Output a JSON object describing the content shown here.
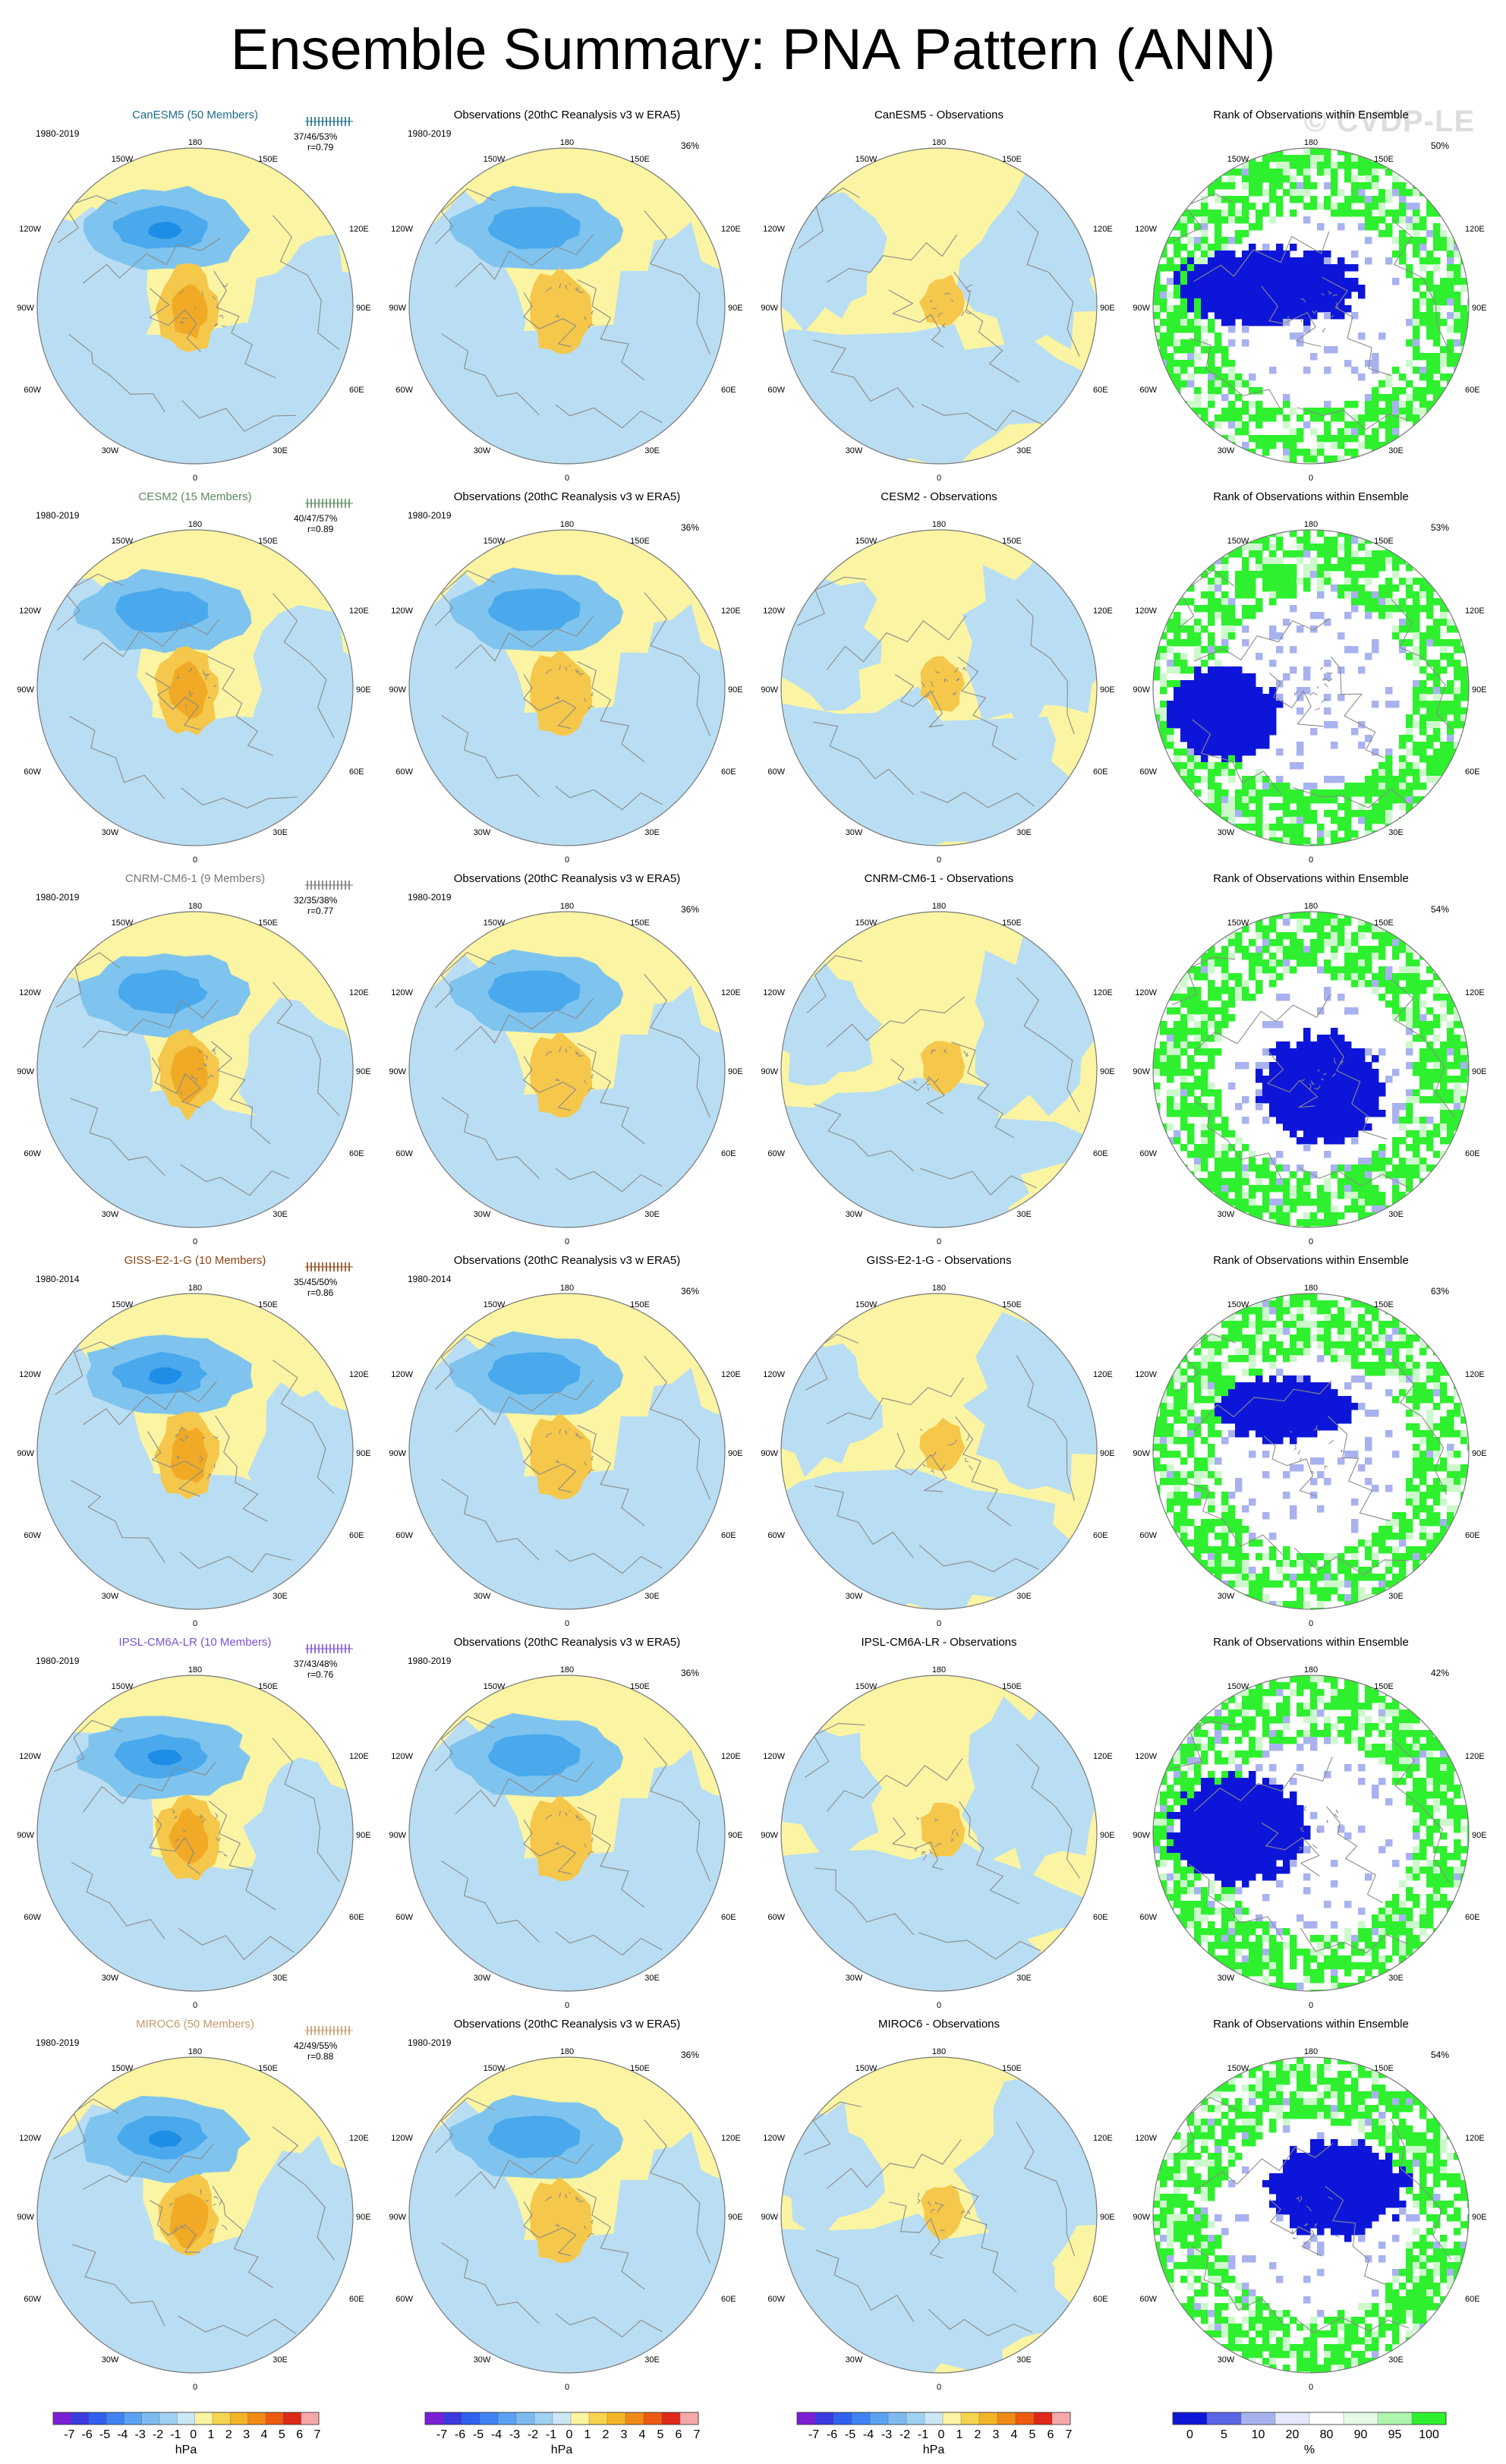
{
  "title": "Ensemble Summary: PNA Pattern (ANN)",
  "watermark": "© CVDP-LE",
  "colors": {
    "ocean_neg": "#b9def3",
    "neg_mid": "#7fc4ee",
    "neg_strong": "#49a9ec",
    "neg_core": "#1d8de6",
    "pos_weak": "#fbf4a2",
    "pos_mid": "#f5c74a",
    "pos_strong": "#f0aa25",
    "rank_high": "#2ef02e",
    "rank_low": "#0d16d8",
    "rank_lowmid": "#a8b2ef",
    "rank_highmid": "#cdf8cc",
    "coast": "#8a8a8a",
    "circle": "#777777"
  },
  "lon_labels": {
    "top": "180",
    "tl": "150W",
    "tr": "150E",
    "l1": "120W",
    "r1": "120E",
    "l2": "90W",
    "r2": "90E",
    "l3": "60W",
    "r3": "60E",
    "bl": "30W",
    "br": "30E",
    "bottom": "0"
  },
  "rows": [
    {
      "model": "CanESM5 (50 Members)",
      "model_color": "#1b6e8a",
      "years": "1980-2019",
      "stats": "37/46/53%",
      "r": "r=0.79",
      "obs_pct": "36%",
      "diff_title": "CanESM5 - Observations",
      "rank_pct": "50%",
      "lowshift": 0
    },
    {
      "model": "CESM2 (15 Members)",
      "model_color": "#5a8a60",
      "years": "1980-2019",
      "stats": "40/47/57%",
      "r": "r=0.89",
      "obs_pct": "36%",
      "diff_title": "CESM2 - Observations",
      "rank_pct": "53%",
      "lowshift": 1
    },
    {
      "model": "CNRM-CM6-1 (9 Members)",
      "model_color": "#777777",
      "years": "1980-2019",
      "stats": "32/35/38%",
      "r": "r=0.77",
      "obs_pct": "36%",
      "diff_title": "CNRM-CM6-1 - Observations",
      "rank_pct": "54%",
      "lowshift": 2
    },
    {
      "model": "GISS-E2-1-G (10 Members)",
      "model_color": "#8b4513",
      "years": "1980-2014",
      "stats": "35/45/50%",
      "r": "r=0.86",
      "obs_pct": "36%",
      "diff_title": "GISS-E2-1-G - Observations",
      "rank_pct": "63%",
      "lowshift": 3
    },
    {
      "model": "IPSL-CM6A-LR (10 Members)",
      "model_color": "#7b52d6",
      "years": "1980-2019",
      "stats": "37/43/48%",
      "r": "r=0.76",
      "obs_pct": "36%",
      "diff_title": "IPSL-CM6A-LR - Observations",
      "rank_pct": "42%",
      "lowshift": 4
    },
    {
      "model": "MIROC6 (50 Members)",
      "model_color": "#c49a6c",
      "years": "1980-2019",
      "stats": "42/49/55%",
      "r": "r=0.88",
      "obs_pct": "36%",
      "diff_title": "MIROC6 - Observations",
      "rank_pct": "54%",
      "lowshift": 5
    }
  ],
  "obs_title": "Observations (20thC Reanalysis v3 w ERA5)",
  "rank_title": "Rank of Observations within Ensemble",
  "colorbars": [
    {
      "labels": [
        "-7",
        "-6",
        "-5",
        "-4",
        "-3",
        "-2",
        "-1",
        "0",
        "1",
        "2",
        "3",
        "4",
        "5",
        "6",
        "7"
      ],
      "unit": "hPa",
      "colors": [
        "#7a1fd6",
        "#3a3ae0",
        "#2f60f0",
        "#3f82f3",
        "#5aa2f3",
        "#7dbbef",
        "#9fd1f2",
        "#cce8f7",
        "#fbf4a2",
        "#f7d44d",
        "#f4b428",
        "#f28a16",
        "#ee5a10",
        "#e02818",
        "#f4a8a8"
      ]
    },
    {
      "labels": [
        "-7",
        "-6",
        "-5",
        "-4",
        "-3",
        "-2",
        "-1",
        "0",
        "1",
        "2",
        "3",
        "4",
        "5",
        "6",
        "7"
      ],
      "unit": "hPa",
      "colors": [
        "#7a1fd6",
        "#3a3ae0",
        "#2f60f0",
        "#3f82f3",
        "#5aa2f3",
        "#7dbbef",
        "#9fd1f2",
        "#cce8f7",
        "#fbf4a2",
        "#f7d44d",
        "#f4b428",
        "#f28a16",
        "#ee5a10",
        "#e02818",
        "#f4a8a8"
      ]
    },
    {
      "labels": [
        "-7",
        "-6",
        "-5",
        "-4",
        "-3",
        "-2",
        "-1",
        "0",
        "1",
        "2",
        "3",
        "4",
        "5",
        "6",
        "7"
      ],
      "unit": "hPa",
      "colors": [
        "#7a1fd6",
        "#3a3ae0",
        "#2f60f0",
        "#3f82f3",
        "#5aa2f3",
        "#7dbbef",
        "#9fd1f2",
        "#cce8f7",
        "#fbf4a2",
        "#f7d44d",
        "#f4b428",
        "#f28a16",
        "#ee5a10",
        "#e02818",
        "#f4a8a8"
      ]
    },
    {
      "labels": [
        "0",
        "5",
        "10",
        "20",
        "80",
        "90",
        "95",
        "100"
      ],
      "unit": "%",
      "colors": [
        "#0d16d8",
        "#5a64e6",
        "#a8b2ef",
        "#e4e8fa",
        "#ffffff",
        "#e6fae6",
        "#aef5ae",
        "#2ef02e"
      ]
    }
  ]
}
